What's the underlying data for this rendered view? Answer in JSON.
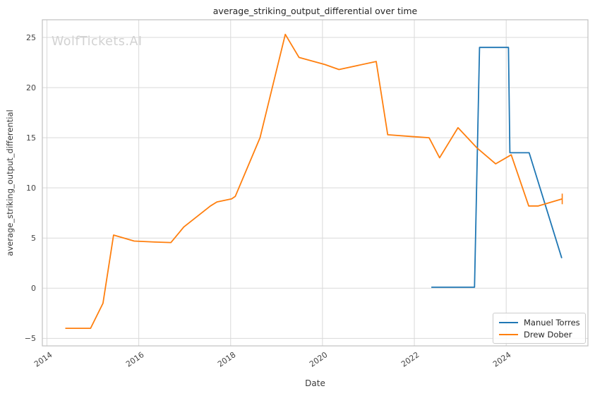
{
  "figure": {
    "watermark": "WolfTickets.AI"
  },
  "chart_data": {
    "type": "line",
    "title": "average_striking_output_differential over time",
    "xlabel": "Date",
    "ylabel": "average_striking_output_differential",
    "xlim": [
      2013.9,
      2025.78
    ],
    "ylim": [
      -5.75,
      26.76
    ],
    "xticks": [
      2014,
      2016,
      2018,
      2020,
      2022,
      2024
    ],
    "yticks": [
      -5,
      0,
      5,
      10,
      15,
      20,
      25
    ],
    "grid": true,
    "grid_color": "#d9d9d9",
    "spine_color": "#c0c0c0",
    "legend_position": "lower right",
    "series": [
      {
        "name": "Manuel Torres",
        "color": "#1f77b4",
        "x": [
          2022.37,
          2023.31,
          2023.42,
          2024.05,
          2024.08,
          2024.5,
          2025.21
        ],
        "y": [
          0.1,
          0.1,
          24.0,
          24.0,
          13.5,
          13.5,
          3.0
        ]
      },
      {
        "name": "Drew Dober",
        "color": "#ff7f0e",
        "end_marker": "vertical-tick",
        "x": [
          2014.4,
          2014.95,
          2015.22,
          2015.45,
          2015.9,
          2016.35,
          2016.7,
          2016.98,
          2017.56,
          2017.7,
          2018.02,
          2018.1,
          2018.64,
          2019.19,
          2019.49,
          2020.05,
          2020.36,
          2021.17,
          2021.42,
          2022.0,
          2022.32,
          2022.55,
          2022.95,
          2023.36,
          2023.77,
          2024.11,
          2024.49,
          2024.7,
          2025.22
        ],
        "y": [
          -4.0,
          -4.0,
          -1.5,
          5.3,
          4.7,
          4.6,
          4.55,
          6.1,
          8.2,
          8.6,
          8.9,
          9.15,
          15.0,
          25.3,
          23.0,
          22.3,
          21.8,
          22.6,
          15.3,
          15.1,
          15.0,
          13.0,
          16.0,
          14.0,
          12.4,
          13.3,
          8.2,
          8.2,
          8.9
        ]
      }
    ]
  }
}
